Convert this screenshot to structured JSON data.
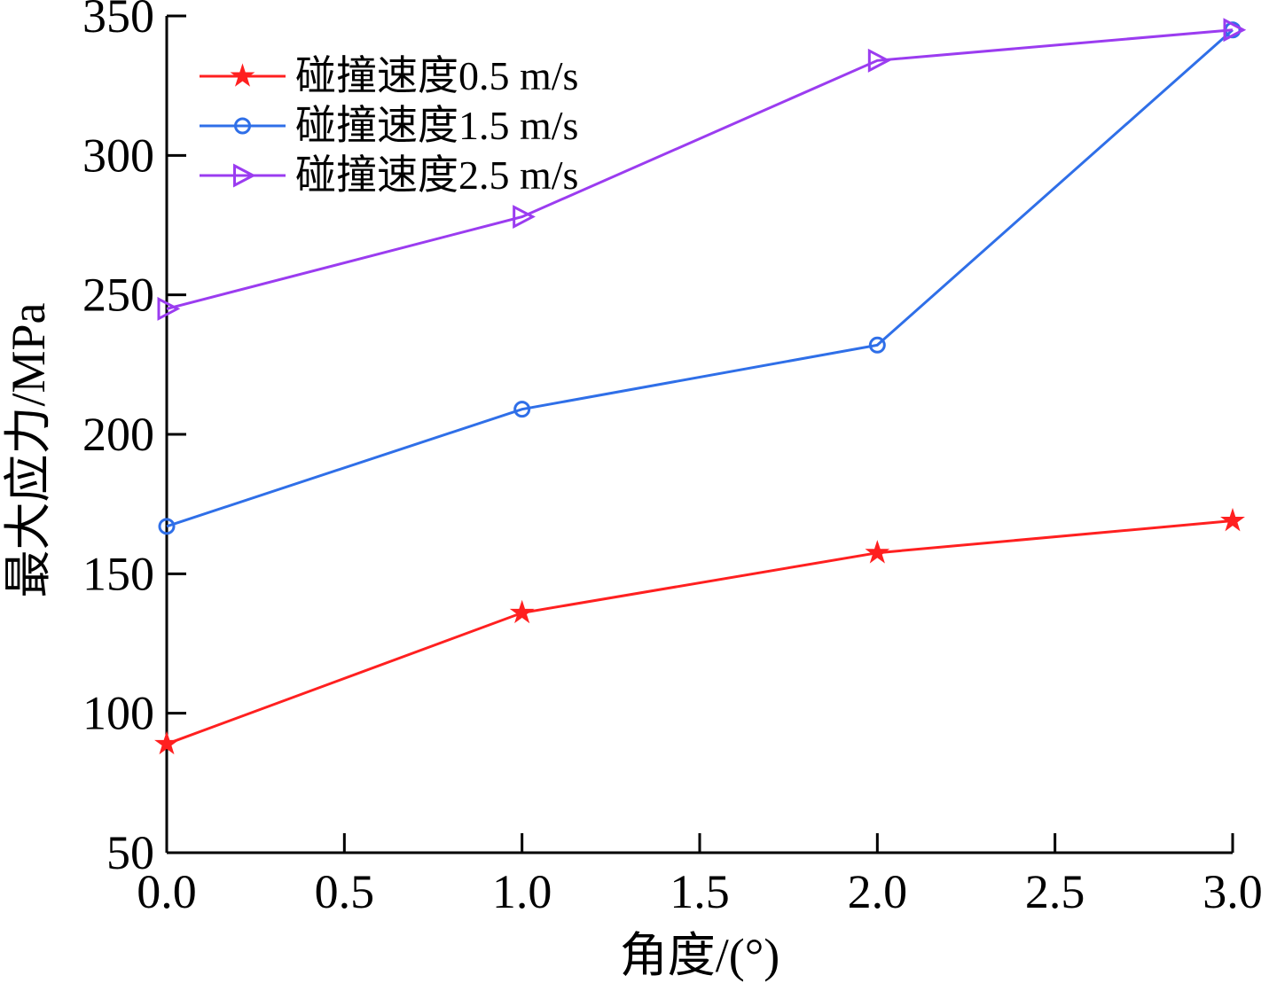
{
  "chart_data": {
    "type": "line",
    "title": "",
    "xlabel": "角度/(°)",
    "ylabel": "最大应力/MPa",
    "xlim": [
      0,
      3
    ],
    "ylim": [
      50,
      350
    ],
    "xticks": [
      0.0,
      0.5,
      1.0,
      1.5,
      2.0,
      2.5,
      3.0
    ],
    "xtick_labels": [
      "0.0",
      "0.5",
      "1.0",
      "1.5",
      "2.0",
      "2.5",
      "3.0"
    ],
    "yticks": [
      50,
      100,
      150,
      200,
      250,
      300,
      350
    ],
    "ytick_labels": [
      "50",
      "100",
      "150",
      "200",
      "250",
      "300",
      "350"
    ],
    "grid": false,
    "legend_position": "top-left",
    "series": [
      {
        "name": "碰撞速度0.5 m/s",
        "color": "#ff2020",
        "marker": "star",
        "x": [
          0,
          1,
          2,
          3
        ],
        "y": [
          89,
          136,
          157.5,
          169
        ]
      },
      {
        "name": "碰撞速度1.5 m/s",
        "color": "#2f6fe8",
        "marker": "circle",
        "x": [
          0,
          1,
          2,
          3
        ],
        "y": [
          167,
          209,
          232,
          345
        ]
      },
      {
        "name": "碰撞速度2.5 m/s",
        "color": "#9b3cf0",
        "marker": "triangle-right",
        "x": [
          0,
          1,
          2,
          3
        ],
        "y": [
          245,
          278,
          334,
          345
        ]
      }
    ]
  }
}
